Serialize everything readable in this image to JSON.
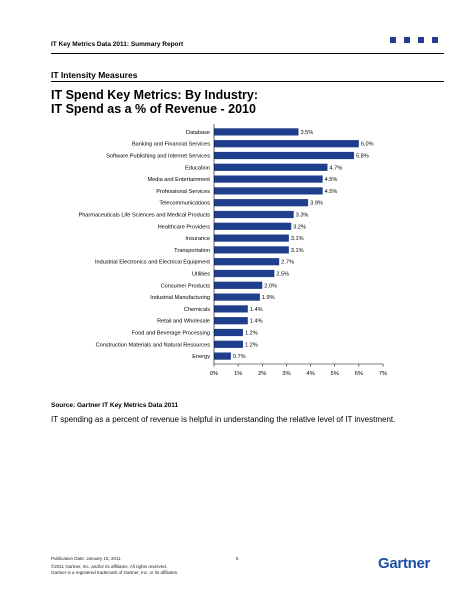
{
  "header": {
    "report_title": "IT Key Metrics Data 2011: Summary Report",
    "squares_color": "#1f3e8c"
  },
  "section_title": "IT Intensity Measures",
  "chart_title_line1": "IT Spend Key Metrics: By Industry:",
  "chart_title_line2": "IT Spend as a % of Revenue - 2010",
  "chart_data": {
    "type": "bar",
    "orientation": "horizontal",
    "categories": [
      "Database",
      "Banking and Financial Services",
      "Software Publishing and Internet Services",
      "Education",
      "Media and Entertainment",
      "Professional Services",
      "Telecommunications",
      "Pharmaceuticals Life Sciences and Medical Products",
      "Healthcare Providers",
      "Insurance",
      "Transportation",
      "Industrial Electronics and Electrical Equipment",
      "Utilities",
      "Consumer Products",
      "Industrial Manufacturing",
      "Chemicals",
      "Retail and Wholesale",
      "Food and Beverage Processing",
      "Construction Materials and Natural Resources",
      "Energy"
    ],
    "values": [
      3.5,
      6.0,
      5.8,
      4.7,
      4.5,
      4.5,
      3.9,
      3.3,
      3.2,
      3.1,
      3.1,
      2.7,
      2.5,
      2.0,
      1.9,
      1.4,
      1.4,
      1.2,
      1.2,
      0.7
    ],
    "value_labels": [
      "3.5%",
      "6.0%",
      "5.8%",
      "4.7%",
      "4.5%",
      "4.5%",
      "3.9%",
      "3.3%",
      "3.2%",
      "3.1%",
      "3.1%",
      "2.7%",
      "2.5%",
      "2.0%",
      "1.9%",
      "1.4%",
      "1.4%",
      "1.2%",
      "1.2%",
      "0.7%"
    ],
    "x_ticks": [
      "0%",
      "1%",
      "2%",
      "3%",
      "4%",
      "5%",
      "6%",
      "7%"
    ],
    "xlim": [
      0,
      7
    ],
    "grid": false,
    "bar_color": "#1f3e8c"
  },
  "source": "Source: Gartner IT Key Metrics Data 2011",
  "body_text": "IT spending as a percent of revenue is helpful in understanding the relative level of IT investment.",
  "footer": {
    "date": "Publication Date: January 15, 2011",
    "copyright_line1": "©2011 Gartner, Inc. and/or its affiliates. All rights reserved.",
    "copyright_line2": "Gartner is a registered trademark of Gartner, Inc. or its affiliates.",
    "page_number": "5",
    "logo": "Gartner",
    "logo_color": "#1f4ea8"
  }
}
